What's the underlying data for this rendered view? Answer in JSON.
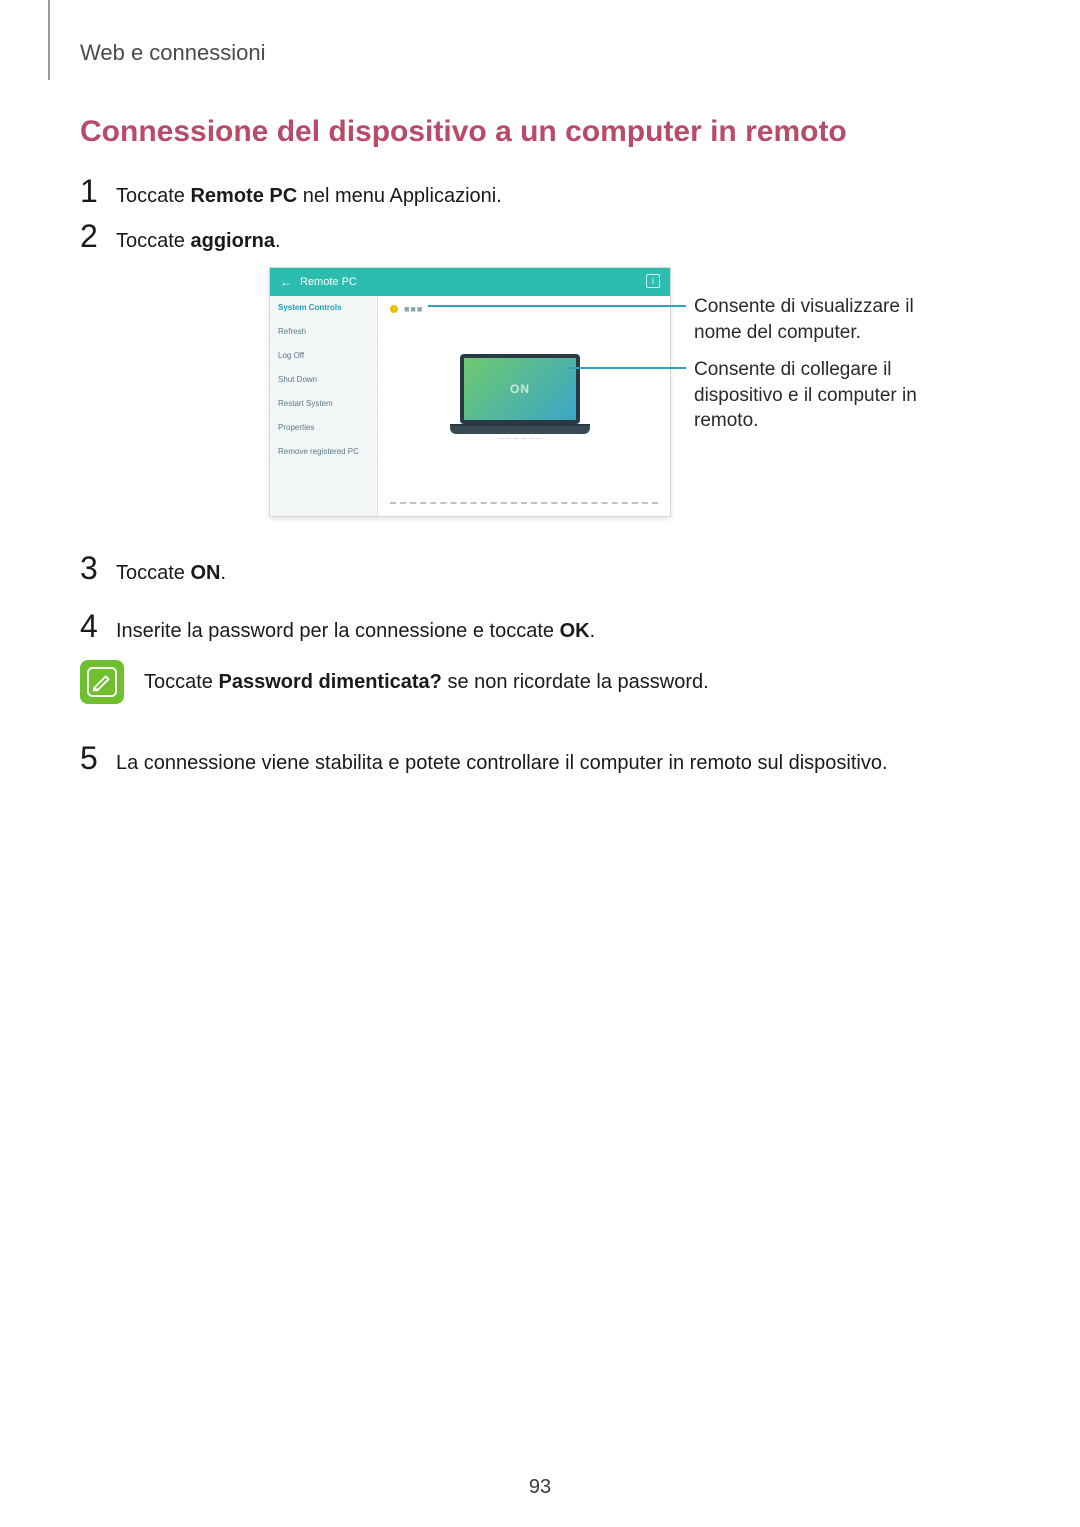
{
  "header": "Web e connessioni",
  "heading": "Connessione del dispositivo a un computer in remoto",
  "steps": {
    "s1_pre": "Toccate ",
    "s1_bold": "Remote PC",
    "s1_post": " nel menu Applicazioni.",
    "s2_pre": "Toccate ",
    "s2_bold": "aggiorna",
    "s2_post": ".",
    "s3_pre": "Toccate ",
    "s3_bold": "ON",
    "s3_post": ".",
    "s4_pre": "Inserite la password per la connessione e toccate ",
    "s4_bold": "OK",
    "s4_post": ".",
    "s5": "La connessione viene stabilita e potete controllare il computer in remoto sul dispositivo."
  },
  "note": {
    "pre": "Toccate ",
    "bold": "Password dimenticata?",
    "post": " se non ricordate la password."
  },
  "callouts": {
    "top": "Consente di visualizzare il nome del computer.",
    "bottom": "Consente di collegare il dispositivo e il computer in remoto."
  },
  "illus": {
    "title": "Remote PC",
    "titlebar_bg": "#2cbdb0",
    "sidebar_items": [
      "System Controls",
      "Refresh",
      "Log Off",
      "Shut Down",
      "Restart System",
      "Properties",
      "Remove registered PC"
    ],
    "pc_name": "■■■",
    "pc_dot_color": "#f2c200",
    "on_label": "ON",
    "screen_gradient_from": "#6fc96f",
    "screen_gradient_to": "#3aa6c7",
    "on_color": "#cfe8d8",
    "callout_line_color": "#2aa6b8"
  },
  "colors": {
    "heading": "#b84a6a",
    "note_icon_bg": "#6fbf2e",
    "note_icon_stroke": "#ffffff"
  },
  "page_number": "93"
}
